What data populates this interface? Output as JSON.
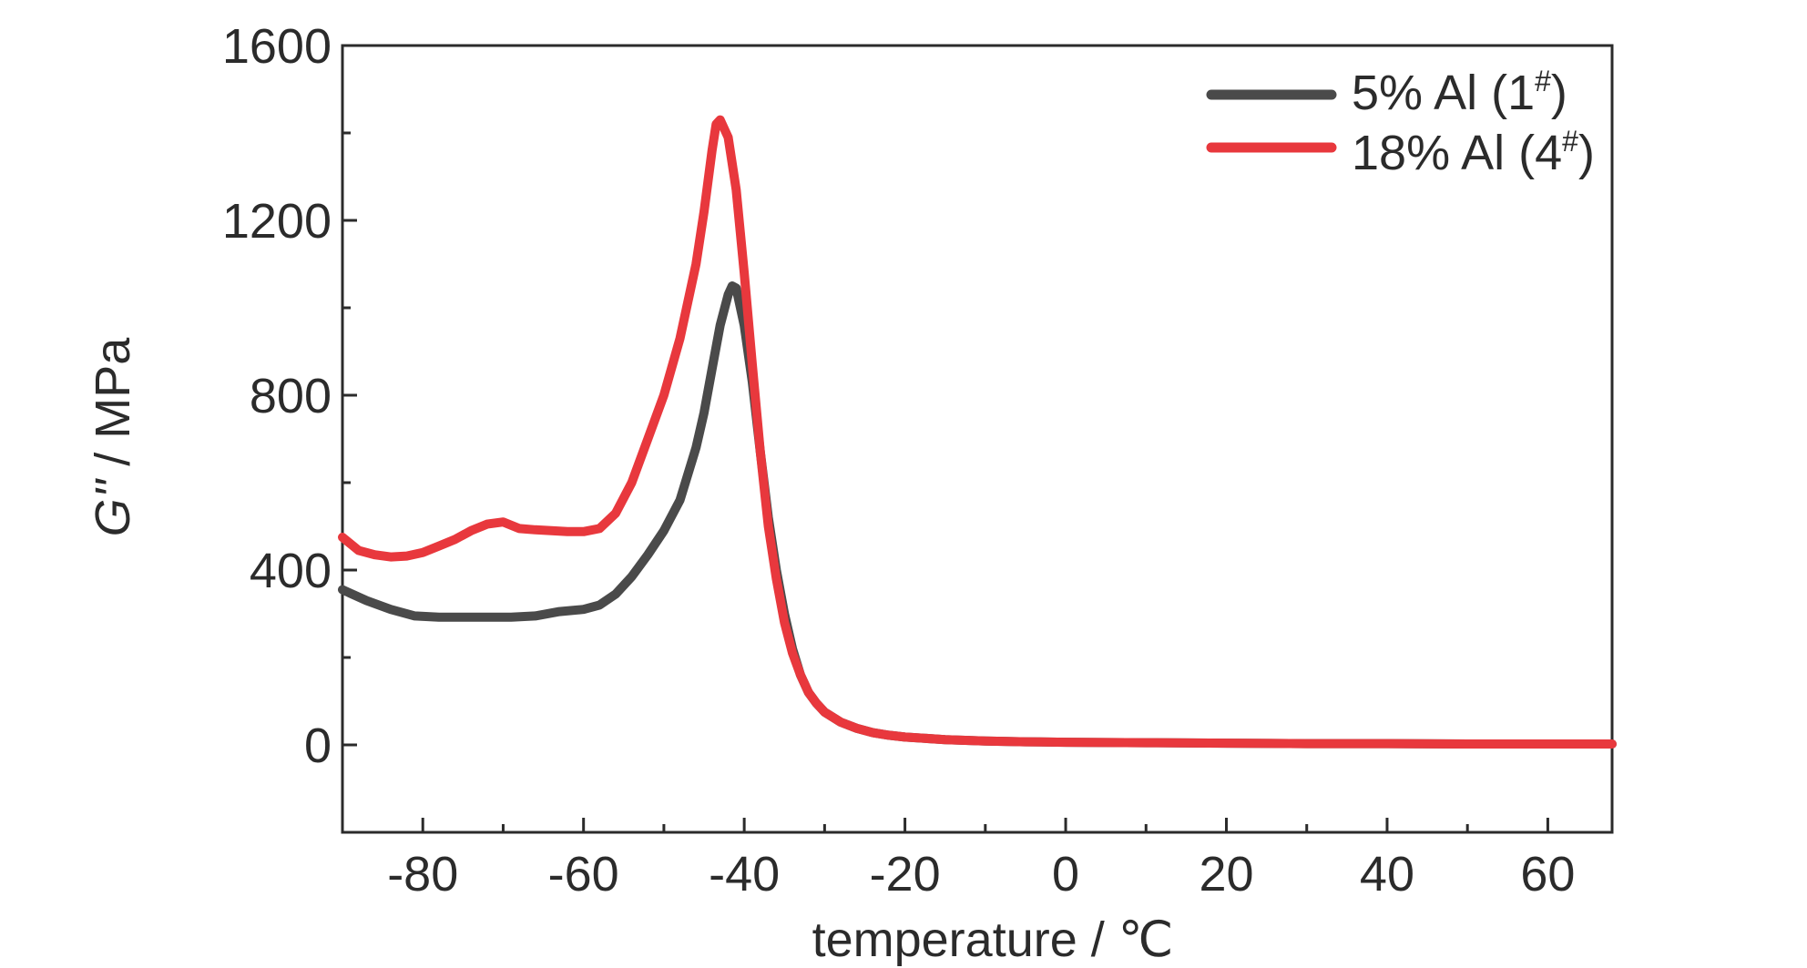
{
  "chart_data": {
    "type": "line",
    "xlabel": "temperature / ℃",
    "ylabel_italic": "G''",
    "ylabel_rest": " / MPa",
    "xlim": [
      -90,
      68
    ],
    "ylim": [
      -200,
      1600
    ],
    "xticks": [
      -80,
      -60,
      -40,
      -20,
      0,
      20,
      40,
      60
    ],
    "yticks": [
      0,
      400,
      800,
      1200,
      1600
    ],
    "xtick_labels": [
      "-80",
      "-60",
      "-40",
      "-20",
      "0",
      "20",
      "40",
      "60"
    ],
    "ytick_labels": [
      "0",
      "400",
      "800",
      "1200",
      "1600"
    ],
    "grid": false,
    "legend_position": "top-right",
    "series": [
      {
        "name": "5% Al (1",
        "sup": "#",
        "name_end": ")",
        "color": "#4a4a4a",
        "x": [
          -90,
          -87,
          -84,
          -81,
          -78,
          -75,
          -72,
          -69,
          -66,
          -63,
          -60,
          -58,
          -56,
          -54,
          -52,
          -50,
          -48,
          -46,
          -45,
          -44,
          -43,
          -42,
          -41.5,
          -41,
          -40,
          -39,
          -38,
          -37,
          -36,
          -35,
          -34,
          -33,
          -32,
          -31,
          -30,
          -28,
          -26,
          -24,
          -22,
          -20,
          -15,
          -10,
          -5,
          0,
          10,
          20,
          30,
          40,
          50,
          60,
          68
        ],
        "y": [
          355,
          330,
          310,
          295,
          292,
          292,
          292,
          292,
          295,
          305,
          310,
          320,
          345,
          385,
          435,
          490,
          560,
          680,
          760,
          860,
          960,
          1030,
          1050,
          1045,
          960,
          830,
          670,
          520,
          400,
          300,
          220,
          160,
          120,
          95,
          75,
          52,
          38,
          28,
          22,
          18,
          12,
          9,
          7,
          6,
          5,
          4,
          3,
          3,
          2,
          2,
          2
        ]
      },
      {
        "name": "18% Al (4",
        "sup": "#",
        "name_end": ")",
        "color": "#e8383d",
        "x": [
          -90,
          -88,
          -86,
          -84,
          -82,
          -80,
          -78,
          -76,
          -74,
          -72,
          -70,
          -68,
          -66,
          -64,
          -62,
          -60,
          -58,
          -56,
          -54,
          -52,
          -50,
          -48,
          -46,
          -45,
          -44,
          -43.5,
          -43,
          -42,
          -41,
          -40,
          -39,
          -38,
          -37,
          -36,
          -35,
          -34,
          -33,
          -32,
          -31,
          -30,
          -28,
          -26,
          -24,
          -22,
          -20,
          -15,
          -10,
          -5,
          0,
          10,
          20,
          30,
          40,
          50,
          60,
          68
        ],
        "y": [
          475,
          445,
          435,
          430,
          432,
          440,
          455,
          470,
          490,
          505,
          510,
          495,
          492,
          490,
          488,
          488,
          495,
          530,
          600,
          700,
          800,
          930,
          1100,
          1220,
          1360,
          1420,
          1430,
          1390,
          1270,
          1080,
          870,
          670,
          500,
          380,
          280,
          210,
          160,
          120,
          95,
          75,
          52,
          38,
          28,
          22,
          18,
          12,
          9,
          7,
          6,
          5,
          4,
          3,
          3,
          2,
          2,
          2
        ]
      }
    ]
  }
}
